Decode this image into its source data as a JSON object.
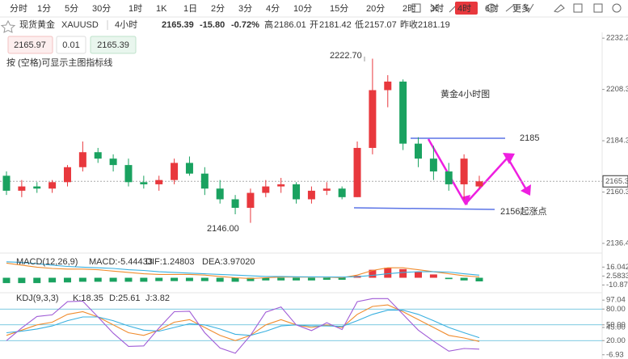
{
  "toolbar": {
    "periods": [
      "分时",
      "1分",
      "5分",
      "30分",
      "1时",
      "1K",
      "1日",
      "2分",
      "3分",
      "4分",
      "10分",
      "15分",
      "20分",
      "2时",
      "3时",
      "4时",
      "6时",
      "更多"
    ],
    "active": "4时"
  },
  "quote": {
    "name": "现货黄金",
    "symbol": "XAUUSD",
    "period": "4小时",
    "price": "2165.39",
    "change": "-15.80",
    "change_pct": "-0.72%",
    "stats": [
      {
        "label": "高",
        "value": "2186.01"
      },
      {
        "label": "开",
        "value": "2181.42"
      },
      {
        "label": "低",
        "value": "2157.07"
      },
      {
        "label": "昨收",
        "value": "2181.19"
      }
    ]
  },
  "order": {
    "sell": "2165.97",
    "lot": "0.01",
    "buy": "2165.39",
    "hint": "按 (空格)可显示主图指标线"
  },
  "chart_data": [
    {
      "type": "candlestick",
      "title": "黄金4小时图",
      "open": [
        2168,
        2161,
        2163,
        2162,
        2165,
        2172,
        2179,
        2176,
        2173,
        2165,
        2164,
        2166,
        2174,
        2169,
        2162,
        2157,
        2153,
        2160,
        2163,
        2164,
        2157,
        2161,
        2162,
        2158,
        2181,
        2208,
        2212,
        2183,
        2176,
        2170,
        2164,
        2163
      ],
      "high": [
        2170,
        2166,
        2165,
        2166,
        2173,
        2184,
        2181,
        2178,
        2176,
        2168,
        2168,
        2176,
        2177,
        2172,
        2166,
        2159,
        2162,
        2166,
        2167,
        2165,
        2163,
        2165,
        2163,
        2184,
        2222.7,
        2215,
        2213,
        2186,
        2182,
        2174,
        2178,
        2168
      ],
      "low": [
        2159,
        2158,
        2160,
        2160,
        2163,
        2170,
        2174,
        2170,
        2163,
        2162,
        2161,
        2164,
        2168,
        2159,
        2155,
        2150,
        2146,
        2158,
        2160,
        2155,
        2155,
        2159,
        2157,
        2158,
        2178,
        2200,
        2180,
        2172,
        2166,
        2161,
        2157,
        2162
      ],
      "close": [
        2161,
        2163,
        2162,
        2165,
        2172,
        2179,
        2176,
        2173,
        2165,
        2164,
        2166,
        2174,
        2169,
        2162,
        2157,
        2153,
        2160,
        2163,
        2164,
        2157,
        2161,
        2162,
        2158,
        2181,
        2208,
        2212,
        2183,
        2176,
        2170,
        2164,
        2176,
        2165.39
      ],
      "colors": {
        "up": "#e8383d",
        "down": "#1aa260"
      },
      "ylim": [
        2133,
        2235
      ],
      "yticks": [
        2232.29,
        2208.32,
        2184.35,
        2160.38,
        2136.41
      ],
      "annotations": [
        "2222.70",
        "2146.00",
        "2185",
        "2156起涨点"
      ]
    },
    {
      "type": "macd",
      "title": "MACD(12,26,9)",
      "legend": [
        "MACD:-5.44433",
        "DIF:1.24803",
        "DEA:3.97020"
      ],
      "legend_colors": [
        "#8a5cd0",
        "#f08c2e",
        "#3ab0e0"
      ],
      "histogram": [
        -8,
        -8,
        -8,
        -7,
        -7,
        -6,
        -6,
        -6,
        -6,
        -6,
        -5,
        -5,
        -5,
        -5,
        -6,
        -6,
        -5,
        -4,
        -4,
        -4,
        -4,
        -3,
        -3,
        3,
        12,
        15,
        13,
        9,
        5,
        -2,
        -4,
        -5.44433
      ],
      "series": [
        {
          "color": "#f08c2e",
          "values": [
            22,
            19,
            16,
            14,
            13,
            13,
            12,
            10,
            8,
            6,
            5,
            5,
            5,
            4,
            2,
            0,
            -1,
            0,
            1,
            1,
            1,
            1,
            0,
            4,
            11,
            15,
            15,
            12,
            9,
            6,
            3,
            1.24803
          ]
        },
        {
          "color": "#3ab0e0",
          "values": [
            24,
            23,
            21,
            19,
            17,
            16,
            15,
            14,
            12,
            11,
            9,
            8,
            7,
            6,
            5,
            4,
            3,
            2,
            2,
            1.5,
            1.4,
            1.3,
            1,
            1.6,
            3.5,
            6,
            8,
            9,
            9,
            8.5,
            6,
            3.9702
          ]
        }
      ],
      "ylim": [
        -20,
        31
      ],
      "yticks": [
        {
          "value": 16.0429,
          "label": "16.04290"
        },
        2.58333,
        -10.87624
      ]
    },
    {
      "type": "kdj",
      "title": "KDJ(9,3,3)",
      "legend": [
        "K:18.35",
        "D:25.61",
        "J:3.82"
      ],
      "series": [
        {
          "color": "#f08c2e",
          "values": [
            30,
            40,
            50,
            55,
            70,
            75,
            65,
            50,
            35,
            30,
            40,
            55,
            60,
            45,
            30,
            20,
            30,
            50,
            60,
            50,
            45,
            50,
            45,
            70,
            85,
            88,
            75,
            60,
            45,
            30,
            25,
            18.35
          ]
        },
        {
          "color": "#3ab0e0",
          "values": [
            35,
            38,
            42,
            48,
            58,
            65,
            65,
            58,
            48,
            40,
            38,
            45,
            52,
            50,
            42,
            32,
            30,
            38,
            48,
            50,
            48,
            48,
            47,
            58,
            70,
            78,
            78,
            70,
            58,
            45,
            35,
            25.61
          ]
        },
        {
          "color": "#a05cd6",
          "values": [
            20,
            44,
            66,
            69,
            94,
            95,
            65,
            34,
            9,
            10,
            44,
            75,
            76,
            35,
            6,
            -4,
            30,
            74,
            84,
            50,
            39,
            54,
            41,
            94,
            100,
            100,
            70,
            40,
            19,
            0,
            5,
            3.82
          ]
        }
      ],
      "levels": [
        80,
        50,
        20
      ],
      "ylim": [
        -15,
        105
      ],
      "yticks": [
        97.04,
        {
          "value": 80,
          "label": "80.00"
        },
        {
          "value": 50,
          "label": "50.00"
        },
        {
          "value": 45,
          "label": "45.00"
        },
        {
          "value": 20,
          "label": "20.00"
        },
        -6.93
      ]
    }
  ]
}
